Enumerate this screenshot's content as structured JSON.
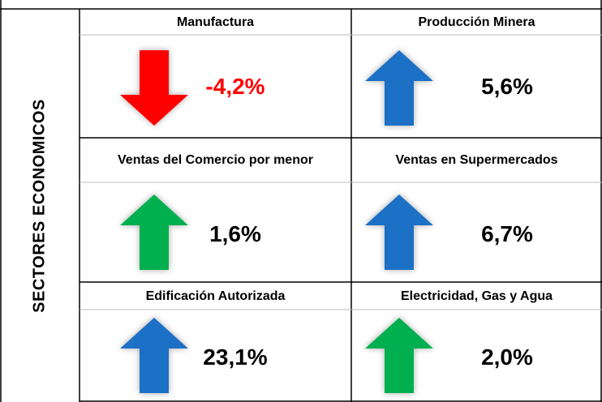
{
  "side_label": "SECTORES ECONOMICOS",
  "cells": [
    {
      "title": "Manufactura",
      "value": "-4,2%"
    },
    {
      "title": "Producción Minera",
      "value": "5,6%"
    },
    {
      "title": "Ventas del Comercio por menor",
      "value": "1,6%"
    },
    {
      "title": "Ventas en Supermercados",
      "value": "6,7%"
    },
    {
      "title": "Edificación Autorizada",
      "value": "23,1%"
    },
    {
      "title": "Electricidad, Gas y Agua",
      "value": "2,0%"
    }
  ]
}
